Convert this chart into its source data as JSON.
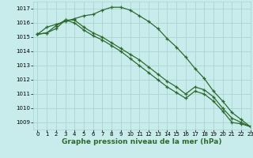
{
  "title": "Graphe pression niveau de la mer (hPa)",
  "background_color": "#c8eceb",
  "grid_color": "#a8d5d3",
  "line_color": "#2d6a2d",
  "xlim": [
    -0.5,
    23
  ],
  "ylim": [
    1008.5,
    1017.5
  ],
  "yticks": [
    1009,
    1010,
    1011,
    1012,
    1013,
    1014,
    1015,
    1016,
    1017
  ],
  "xticks": [
    0,
    1,
    2,
    3,
    4,
    5,
    6,
    7,
    8,
    9,
    10,
    11,
    12,
    13,
    14,
    15,
    16,
    17,
    18,
    19,
    20,
    21,
    22,
    23
  ],
  "series": [
    [
      1015.2,
      1015.7,
      1015.9,
      1016.1,
      1016.3,
      1016.5,
      1016.6,
      1016.9,
      1017.1,
      1017.1,
      1016.9,
      1016.5,
      1016.1,
      1015.6,
      1014.9,
      1014.3,
      1013.6,
      1012.8,
      1012.1,
      1011.2,
      1010.5,
      1009.7,
      1009.2,
      1008.7
    ],
    [
      1015.2,
      1015.3,
      1015.8,
      1016.2,
      1016.2,
      1015.7,
      1015.3,
      1015.0,
      1014.6,
      1014.2,
      1013.8,
      1013.4,
      1012.9,
      1012.4,
      1011.9,
      1011.5,
      1011.0,
      1011.5,
      1011.3,
      1010.8,
      1010.0,
      1009.3,
      1009.0,
      1008.7
    ],
    [
      1015.2,
      1015.3,
      1015.6,
      1016.2,
      1016.0,
      1015.5,
      1015.1,
      1014.8,
      1014.4,
      1014.0,
      1013.5,
      1013.0,
      1012.5,
      1012.0,
      1011.5,
      1011.1,
      1010.7,
      1011.2,
      1011.0,
      1010.5,
      1009.8,
      1009.0,
      1008.9,
      1008.7
    ]
  ],
  "title_fontsize": 6.5,
  "tick_fontsize": 5.0
}
